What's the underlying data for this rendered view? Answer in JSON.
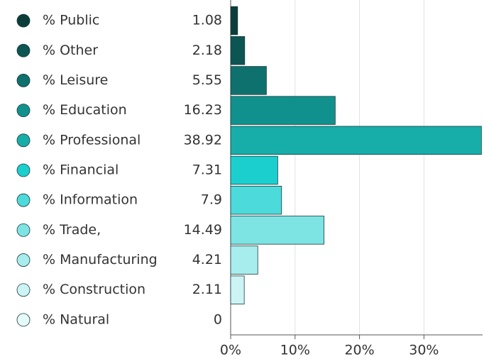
{
  "chart_data": {
    "type": "bar",
    "orientation": "horizontal",
    "categories": [
      "% Public",
      "% Other",
      "% Leisure",
      "% Education",
      "% Professional",
      "% Financial",
      "% Information",
      "% Trade,",
      "% Manufacturing",
      "% Construction",
      "% Natural"
    ],
    "values": [
      1.08,
      2.18,
      5.55,
      16.23,
      38.92,
      7.31,
      7.9,
      14.49,
      4.21,
      2.11,
      0
    ],
    "colors": [
      "#0b3d3a",
      "#0d5553",
      "#0e716d",
      "#10918d",
      "#17aeaa",
      "#1ccfcf",
      "#4ddada",
      "#7de3e3",
      "#a8eded",
      "#cdf4f4",
      "#e6fafa"
    ],
    "xlim": [
      0,
      39.1
    ],
    "xticks": [
      {
        "value": 0,
        "label": "0%"
      },
      {
        "value": 10,
        "label": "10%"
      },
      {
        "value": 20,
        "label": "20%"
      },
      {
        "value": 30,
        "label": "30%"
      }
    ],
    "grid": true
  }
}
